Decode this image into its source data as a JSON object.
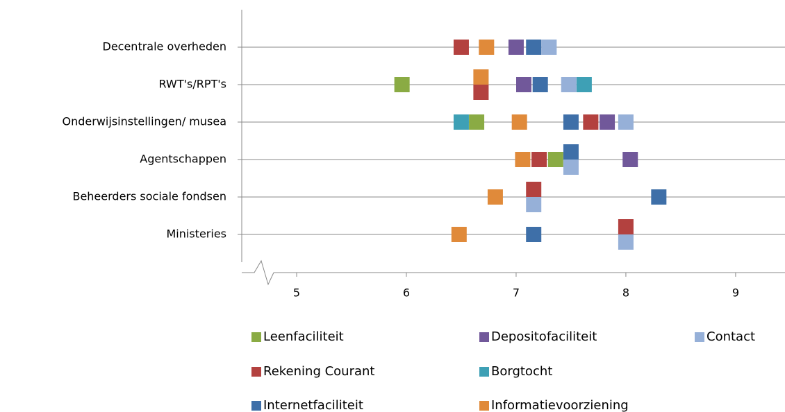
{
  "chart_data": {
    "type": "dot",
    "categories": [
      "Decentrale overheden",
      "RWT's/RPT's",
      "Onderwijsinstellingen/ musea",
      "Agentschappen",
      "Beheerders sociale fondsen",
      "Ministeries"
    ],
    "series": [
      {
        "name": "Leenfaciliteit",
        "color": "#8aab44",
        "values": [
          null,
          5.96,
          6.64,
          7.36,
          null,
          null
        ]
      },
      {
        "name": "Rekening Courant",
        "color": "#b3413f",
        "values": [
          6.5,
          6.68,
          7.68,
          7.21,
          7.16,
          8.0
        ]
      },
      {
        "name": "Internetfaciliteit",
        "color": "#3e6fa8",
        "values": [
          7.16,
          7.22,
          7.5,
          7.5,
          8.3,
          7.16
        ]
      },
      {
        "name": "Depositofaciliteit",
        "color": "#71589a",
        "values": [
          7.0,
          7.07,
          7.83,
          8.04,
          null,
          null
        ]
      },
      {
        "name": "Borgtocht",
        "color": "#3ea0b5",
        "values": [
          null,
          7.62,
          6.5,
          null,
          null,
          null
        ]
      },
      {
        "name": "Informatievoorziening",
        "color": "#e08a3a",
        "values": [
          6.73,
          6.68,
          7.03,
          7.06,
          6.81,
          6.48
        ]
      },
      {
        "name": "Contact",
        "color": "#96b0d8",
        "values": [
          7.3,
          7.48,
          8.0,
          7.5,
          7.16,
          8.0
        ]
      }
    ],
    "xlim": [
      4.5,
      9.45
    ],
    "xticks": [
      5,
      6,
      7,
      8,
      9
    ],
    "grid": true
  }
}
